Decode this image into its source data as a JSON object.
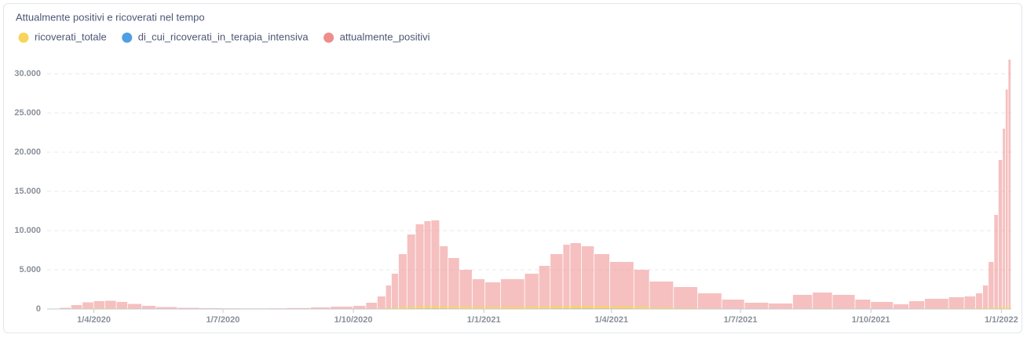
{
  "chart_data": {
    "type": "bar",
    "title": "Attualmente positivi e ricoverati nel tempo",
    "x": [
      "2020-02-28",
      "2020-03-08",
      "2020-03-16",
      "2020-03-24",
      "2020-04-01",
      "2020-04-09",
      "2020-04-17",
      "2020-04-25",
      "2020-05-05",
      "2020-05-15",
      "2020-05-30",
      "2020-06-15",
      "2020-07-01",
      "2020-07-15",
      "2020-08-01",
      "2020-08-15",
      "2020-09-01",
      "2020-09-15",
      "2020-10-01",
      "2020-10-10",
      "2020-10-18",
      "2020-10-24",
      "2020-10-28",
      "2020-11-02",
      "2020-11-08",
      "2020-11-14",
      "2020-11-20",
      "2020-11-25",
      "2020-12-01",
      "2020-12-07",
      "2020-12-15",
      "2020-12-24",
      "2021-01-02",
      "2021-01-13",
      "2021-01-30",
      "2021-02-09",
      "2021-02-17",
      "2021-02-26",
      "2021-03-03",
      "2021-03-11",
      "2021-03-20",
      "2021-03-31",
      "2021-04-17",
      "2021-04-28",
      "2021-05-15",
      "2021-06-01",
      "2021-06-18",
      "2021-07-04",
      "2021-07-21",
      "2021-08-07",
      "2021-08-21",
      "2021-09-04",
      "2021-09-20",
      "2021-10-01",
      "2021-10-17",
      "2021-10-28",
      "2021-11-08",
      "2021-11-25",
      "2021-12-06",
      "2021-12-14",
      "2021-12-19",
      "2021-12-23",
      "2021-12-27",
      "2021-12-30",
      "2022-01-02",
      "2022-01-04",
      "2022-01-06"
    ],
    "series": [
      {
        "name": "ricoverati_totale",
        "color": "#f9d45c",
        "values": [
          0,
          20,
          60,
          100,
          110,
          100,
          80,
          60,
          40,
          25,
          15,
          10,
          5,
          5,
          5,
          10,
          20,
          30,
          40,
          60,
          100,
          160,
          200,
          260,
          300,
          340,
          360,
          360,
          340,
          320,
          300,
          280,
          270,
          280,
          300,
          330,
          360,
          390,
          400,
          400,
          380,
          350,
          300,
          200,
          120,
          70,
          40,
          25,
          30,
          60,
          80,
          70,
          60,
          50,
          40,
          50,
          70,
          90,
          110,
          130,
          150,
          170,
          200,
          230,
          260,
          290,
          320
        ]
      },
      {
        "name": "di_cui_ricoverati_in_terapia_intensiva",
        "color": "#509ee3",
        "values": [
          0,
          5,
          15,
          25,
          30,
          25,
          20,
          15,
          10,
          5,
          3,
          2,
          1,
          1,
          1,
          2,
          3,
          5,
          8,
          12,
          20,
          30,
          35,
          45,
          55,
          60,
          65,
          65,
          60,
          55,
          50,
          45,
          45,
          45,
          50,
          55,
          60,
          65,
          70,
          70,
          65,
          60,
          50,
          35,
          20,
          12,
          6,
          4,
          5,
          10,
          12,
          12,
          10,
          8,
          6,
          8,
          10,
          14,
          16,
          18,
          20,
          22,
          25,
          28,
          30,
          32,
          35
        ]
      },
      {
        "name": "attualmente_positivi",
        "color": "#ef8c8c",
        "values": [
          0,
          150,
          500,
          850,
          1000,
          1050,
          900,
          650,
          400,
          250,
          150,
          100,
          80,
          70,
          80,
          120,
          200,
          300,
          400,
          800,
          1600,
          3000,
          4500,
          7000,
          9500,
          10800,
          11200,
          11300,
          8000,
          6500,
          5000,
          3800,
          3400,
          3800,
          4500,
          5500,
          7000,
          8200,
          8400,
          8000,
          7000,
          6000,
          5000,
          3500,
          2800,
          2000,
          1200,
          800,
          700,
          1800,
          2100,
          1800,
          1200,
          900,
          600,
          1000,
          1300,
          1500,
          1600,
          2000,
          3000,
          6000,
          12000,
          19000,
          23000,
          28000,
          31800
        ]
      }
    ],
    "xlim": [
      "2020-02-28",
      "2022-01-08"
    ],
    "xticks": [
      {
        "value": "2020-04-01",
        "label": "1/4/2020"
      },
      {
        "value": "2020-07-01",
        "label": "1/7/2020"
      },
      {
        "value": "2020-10-01",
        "label": "1/10/2020"
      },
      {
        "value": "2021-01-01",
        "label": "1/1/2021"
      },
      {
        "value": "2021-04-01",
        "label": "1/4/2021"
      },
      {
        "value": "2021-07-01",
        "label": "1/7/2021"
      },
      {
        "value": "2021-10-01",
        "label": "1/10/2021"
      },
      {
        "value": "2022-01-01",
        "label": "1/1/2022"
      }
    ],
    "ylim": [
      0,
      32000
    ],
    "yticks": [
      0,
      {
        "value": 5000,
        "label": "5.000"
      },
      {
        "value": 10000,
        "label": "10.000"
      },
      {
        "value": 15000,
        "label": "15.000"
      },
      {
        "value": 20000,
        "label": "20.000"
      },
      {
        "value": 25000,
        "label": "25.000"
      },
      {
        "value": 30000,
        "label": "30.000"
      }
    ],
    "grid": true
  }
}
